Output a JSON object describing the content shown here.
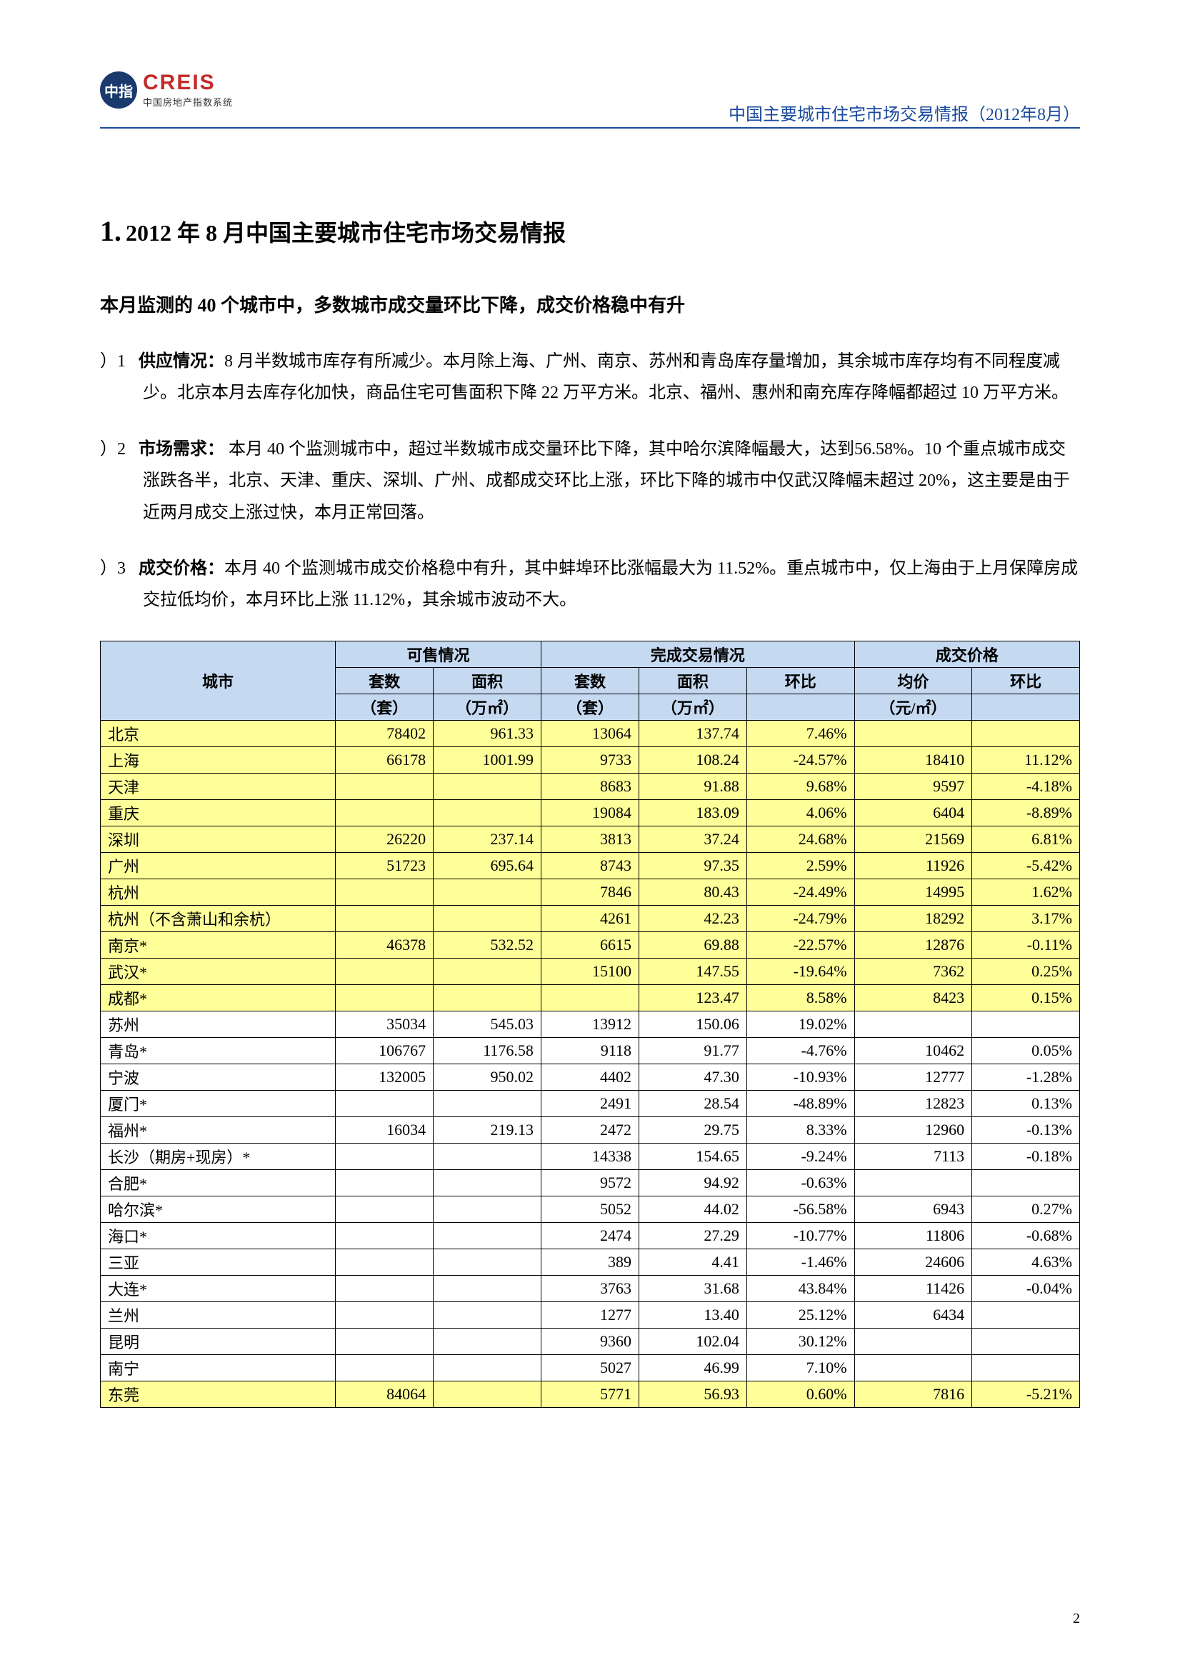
{
  "logo": {
    "badge": "中指",
    "main": "CREIS",
    "sub": "中国房地产指数系统"
  },
  "header_title": "中国主要城市住宅市场交易情报（2012年8月）",
  "page_number": "2",
  "section": {
    "number": "1.",
    "title": "2012 年 8 月中国主要城市住宅市场交易情报"
  },
  "subtitle": "本月监测的 40 个城市中，多数城市成交量环比下降，成交价格稳中有升",
  "paragraphs": [
    {
      "prefix": "）1",
      "label": "供应情况：",
      "text": "8 月半数城市库存有所减少。本月除上海、广州、南京、苏州和青岛库存量增加，其余城市库存均有不同程度减少。北京本月去库存化加快，商品住宅可售面积下降 22 万平方米。北京、福州、惠州和南充库存降幅都超过 10 万平方米。"
    },
    {
      "prefix": "）2",
      "label": "市场需求：",
      "text": "  本月 40 个监测城市中，超过半数城市成交量环比下降，其中哈尔滨降幅最大，达到56.58%。10 个重点城市成交涨跌各半，北京、天津、重庆、深圳、广州、成都成交环比上涨，环比下降的城市中仅武汉降幅未超过 20%，这主要是由于近两月成交上涨过快，本月正常回落。"
    },
    {
      "prefix": "）3",
      "label": "成交价格：",
      "text": "本月 40 个监测城市成交价格稳中有升，其中蚌埠环比涨幅最大为 11.52%。重点城市中，仅上海由于上月保障房成交拉低均价，本月环比上涨 11.12%，其余城市波动不大。"
    }
  ],
  "table": {
    "header_groups": [
      "可售情况",
      "完成交易情况",
      "成交价格"
    ],
    "header_city": "城市",
    "sub_headers": {
      "avail_units": "套数",
      "avail_area": "面积",
      "tx_units": "套数",
      "tx_area": "面积",
      "tx_mom": "环比",
      "price": "均价",
      "price_mom": "环比"
    },
    "unit_row": {
      "avail_units": "（套）",
      "avail_area": "（万㎡）",
      "tx_units": "（套）",
      "tx_area": "（万㎡）",
      "tx_mom": "",
      "price": "（元/㎡）",
      "price_mom": ""
    },
    "col_widths": [
      "24%",
      "10%",
      "11%",
      "10%",
      "11%",
      "11%",
      "12%",
      "11%"
    ],
    "rows": [
      {
        "hl": true,
        "city": "北京",
        "au": "78402",
        "aa": "961.33",
        "tu": "13064",
        "ta": "137.74",
        "tm": "7.46%",
        "p": "",
        "pm": ""
      },
      {
        "hl": true,
        "city": "上海",
        "au": "66178",
        "aa": "1001.99",
        "tu": "9733",
        "ta": "108.24",
        "tm": "-24.57%",
        "p": "18410",
        "pm": "11.12%"
      },
      {
        "hl": true,
        "city": "天津",
        "au": "",
        "aa": "",
        "tu": "8683",
        "ta": "91.88",
        "tm": "9.68%",
        "p": "9597",
        "pm": "-4.18%"
      },
      {
        "hl": true,
        "city": "重庆",
        "au": "",
        "aa": "",
        "tu": "19084",
        "ta": "183.09",
        "tm": "4.06%",
        "p": "6404",
        "pm": "-8.89%"
      },
      {
        "hl": true,
        "city": "深圳",
        "au": "26220",
        "aa": "237.14",
        "tu": "3813",
        "ta": "37.24",
        "tm": "24.68%",
        "p": "21569",
        "pm": "6.81%"
      },
      {
        "hl": true,
        "city": "广州",
        "au": "51723",
        "aa": "695.64",
        "tu": "8743",
        "ta": "97.35",
        "tm": "2.59%",
        "p": "11926",
        "pm": "-5.42%"
      },
      {
        "hl": true,
        "city": "杭州",
        "au": "",
        "aa": "",
        "tu": "7846",
        "ta": "80.43",
        "tm": "-24.49%",
        "p": "14995",
        "pm": "1.62%"
      },
      {
        "hl": true,
        "city": "杭州（不含萧山和余杭）",
        "au": "",
        "aa": "",
        "tu": "4261",
        "ta": "42.23",
        "tm": "-24.79%",
        "p": "18292",
        "pm": "3.17%"
      },
      {
        "hl": true,
        "city": "南京*",
        "au": "46378",
        "aa": "532.52",
        "tu": "6615",
        "ta": "69.88",
        "tm": "-22.57%",
        "p": "12876",
        "pm": "-0.11%"
      },
      {
        "hl": true,
        "city": "武汉*",
        "au": "",
        "aa": "",
        "tu": "15100",
        "ta": "147.55",
        "tm": "-19.64%",
        "p": "7362",
        "pm": "0.25%"
      },
      {
        "hl": true,
        "city": "成都*",
        "au": "",
        "aa": "",
        "tu": "",
        "ta": "123.47",
        "tm": "8.58%",
        "p": "8423",
        "pm": "0.15%"
      },
      {
        "hl": false,
        "city": "苏州",
        "au": "35034",
        "aa": "545.03",
        "tu": "13912",
        "ta": "150.06",
        "tm": "19.02%",
        "p": "",
        "pm": ""
      },
      {
        "hl": false,
        "city": "青岛*",
        "au": "106767",
        "aa": "1176.58",
        "tu": "9118",
        "ta": "91.77",
        "tm": "-4.76%",
        "p": "10462",
        "pm": "0.05%"
      },
      {
        "hl": false,
        "city": "宁波",
        "au": "132005",
        "aa": "950.02",
        "tu": "4402",
        "ta": "47.30",
        "tm": "-10.93%",
        "p": "12777",
        "pm": "-1.28%"
      },
      {
        "hl": false,
        "city": "厦门*",
        "au": "",
        "aa": "",
        "tu": "2491",
        "ta": "28.54",
        "tm": "-48.89%",
        "p": "12823",
        "pm": "0.13%"
      },
      {
        "hl": false,
        "city": "福州*",
        "au": "16034",
        "aa": "219.13",
        "tu": "2472",
        "ta": "29.75",
        "tm": "8.33%",
        "p": "12960",
        "pm": "-0.13%"
      },
      {
        "hl": false,
        "city": "长沙（期房+现房）*",
        "au": "",
        "aa": "",
        "tu": "14338",
        "ta": "154.65",
        "tm": "-9.24%",
        "p": "7113",
        "pm": "-0.18%"
      },
      {
        "hl": false,
        "city": "合肥*",
        "au": "",
        "aa": "",
        "tu": "9572",
        "ta": "94.92",
        "tm": "-0.63%",
        "p": "",
        "pm": ""
      },
      {
        "hl": false,
        "city": "哈尔滨*",
        "au": "",
        "aa": "",
        "tu": "5052",
        "ta": "44.02",
        "tm": "-56.58%",
        "p": "6943",
        "pm": "0.27%"
      },
      {
        "hl": false,
        "city": "海口*",
        "au": "",
        "aa": "",
        "tu": "2474",
        "ta": "27.29",
        "tm": "-10.77%",
        "p": "11806",
        "pm": "-0.68%"
      },
      {
        "hl": false,
        "city": "三亚",
        "au": "",
        "aa": "",
        "tu": "389",
        "ta": "4.41",
        "tm": "-1.46%",
        "p": "24606",
        "pm": "4.63%"
      },
      {
        "hl": false,
        "city": "大连*",
        "au": "",
        "aa": "",
        "tu": "3763",
        "ta": "31.68",
        "tm": "43.84%",
        "p": "11426",
        "pm": "-0.04%"
      },
      {
        "hl": false,
        "city": "兰州",
        "au": "",
        "aa": "",
        "tu": "1277",
        "ta": "13.40",
        "tm": "25.12%",
        "p": "6434",
        "pm": ""
      },
      {
        "hl": false,
        "city": "昆明",
        "au": "",
        "aa": "",
        "tu": "9360",
        "ta": "102.04",
        "tm": "30.12%",
        "p": "",
        "pm": ""
      },
      {
        "hl": false,
        "city": "南宁",
        "au": "",
        "aa": "",
        "tu": "5027",
        "ta": "46.99",
        "tm": "7.10%",
        "p": "",
        "pm": ""
      },
      {
        "hl": true,
        "city": "东莞",
        "au": "84064",
        "aa": "",
        "tu": "5771",
        "ta": "56.93",
        "tm": "0.60%",
        "p": "7816",
        "pm": "-5.21%"
      }
    ]
  },
  "colors": {
    "header_bg": "#c5d9f1",
    "highlight_bg": "#ffff99",
    "rule": "#1a4a9e",
    "logo_red": "#c32a2a",
    "logo_badge": "#1a3a6e"
  }
}
